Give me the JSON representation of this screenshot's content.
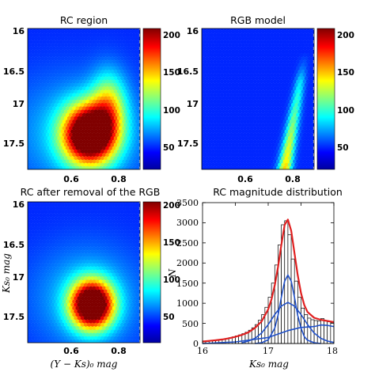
{
  "chart_data": [
    {
      "type": "heatmap",
      "title": "RC region",
      "x_ticks": [
        "0.6",
        "0.8"
      ],
      "y_ticks": [
        "16",
        "16.5",
        "17",
        "17.5"
      ],
      "xlim": [
        0.45,
        0.92
      ],
      "ylim": [
        16.0,
        17.75
      ],
      "colorbar": {
        "ticks": [
          "50",
          "100",
          "150",
          "200"
        ],
        "range": [
          10,
          210
        ]
      },
      "blobs": [
        {
          "x": 0.71,
          "y": 17.32,
          "sx": 0.075,
          "sy": 0.25,
          "peak": 260
        },
        {
          "x": 0.79,
          "y": 16.95,
          "sx": 0.05,
          "sy": 0.28,
          "peak": 85
        },
        {
          "x": 0.66,
          "y": 17.3,
          "sx": 0.2,
          "sy": 0.5,
          "peak": 38
        }
      ]
    },
    {
      "type": "heatmap",
      "title": "RGB model",
      "x_ticks": [
        "0.6",
        "0.8"
      ],
      "y_ticks": [
        "16",
        "16.5",
        "17",
        "17.5"
      ],
      "xlim": [
        0.45,
        0.92
      ],
      "ylim": [
        16.0,
        17.75
      ],
      "colorbar": {
        "ticks": [
          "50",
          "100",
          "150",
          "200"
        ],
        "range": [
          10,
          210
        ]
      },
      "ridge": {
        "x_top": 0.875,
        "y_top": 16.45,
        "x_bottom": 0.8,
        "y_bottom": 17.72,
        "peak": 120
      }
    },
    {
      "type": "heatmap",
      "title": "RC after removal of the RGB",
      "xlabel": "(Y − Ks)₀ mag",
      "ylabel": "Ks₀ mag",
      "x_ticks": [
        "0.6",
        "0.8"
      ],
      "y_ticks": [
        "16",
        "16.5",
        "17",
        "17.5"
      ],
      "xlim": [
        0.45,
        0.92
      ],
      "ylim": [
        16.0,
        17.75
      ],
      "colorbar": {
        "ticks": [
          "50",
          "100",
          "150",
          "200"
        ],
        "range": [
          10,
          210
        ]
      },
      "blobs": [
        {
          "x": 0.72,
          "y": 17.28,
          "sx": 0.06,
          "sy": 0.2,
          "peak": 260
        },
        {
          "x": 0.7,
          "y": 17.2,
          "sx": 0.16,
          "sy": 0.45,
          "peak": 40
        }
      ]
    },
    {
      "type": "bar",
      "title": "RC magnitude distribution",
      "xlabel": "Ks₀ mag",
      "ylabel": "N",
      "xlim": [
        16,
        18
      ],
      "ylim": [
        0,
        3500
      ],
      "x_ticks": [
        "16",
        "17",
        "18"
      ],
      "y_ticks": [
        "0",
        "500",
        "1000",
        "1500",
        "2000",
        "2500",
        "3000",
        "3500"
      ],
      "bins": {
        "x": [
          16.025,
          16.075,
          16.125,
          16.175,
          16.225,
          16.275,
          16.325,
          16.375,
          16.425,
          16.475,
          16.525,
          16.575,
          16.625,
          16.675,
          16.725,
          16.775,
          16.825,
          16.875,
          16.925,
          16.975,
          17.025,
          17.075,
          17.125,
          17.175,
          17.225,
          17.275,
          17.325,
          17.375,
          17.425,
          17.475,
          17.525,
          17.575,
          17.625,
          17.675,
          17.725,
          17.775,
          17.825,
          17.875,
          17.925,
          17.975
        ],
        "values": [
          40,
          50,
          60,
          70,
          80,
          95,
          110,
          125,
          145,
          165,
          190,
          215,
          245,
          280,
          330,
          390,
          470,
          580,
          720,
          900,
          1150,
          1500,
          1950,
          2450,
          2950,
          3050,
          2700,
          2100,
          1550,
          1150,
          880,
          720,
          630,
          590,
          570,
          560,
          620,
          560,
          540,
          520
        ]
      },
      "series": [
        {
          "color": "#e02020",
          "x": [
            16.0,
            16.1,
            16.2,
            16.3,
            16.4,
            16.5,
            16.6,
            16.7,
            16.8,
            16.9,
            17.0,
            17.05,
            17.1,
            17.15,
            17.2,
            17.25,
            17.3,
            17.35,
            17.4,
            17.45,
            17.5,
            17.55,
            17.6,
            17.7,
            17.8,
            17.9,
            18.0
          ],
          "values": [
            50,
            65,
            80,
            100,
            130,
            165,
            215,
            280,
            390,
            550,
            850,
            1100,
            1450,
            1900,
            2450,
            2950,
            3080,
            2800,
            2250,
            1700,
            1250,
            950,
            780,
            640,
            590,
            560,
            530
          ]
        },
        {
          "color": "#2050c8",
          "x": [
            16.8,
            16.9,
            17.0,
            17.1,
            17.15,
            17.2,
            17.25,
            17.3,
            17.35,
            17.4,
            17.45,
            17.5,
            17.55,
            17.6,
            17.7,
            17.8
          ],
          "values": [
            0,
            20,
            90,
            380,
            700,
            1150,
            1550,
            1700,
            1550,
            1150,
            700,
            380,
            170,
            80,
            20,
            0
          ]
        },
        {
          "color": "#2050c8",
          "x": [
            16.6,
            16.7,
            16.8,
            16.9,
            17.0,
            17.1,
            17.2,
            17.3,
            17.4,
            17.5,
            17.6,
            17.7,
            17.8,
            17.9,
            18.0
          ],
          "values": [
            20,
            60,
            130,
            260,
            470,
            720,
            930,
            1020,
            930,
            720,
            470,
            260,
            130,
            60,
            25
          ]
        },
        {
          "color": "#2050c8",
          "x": [
            16.0,
            16.5,
            17.0,
            17.3,
            17.5,
            17.7,
            17.8,
            17.9,
            18.0
          ],
          "values": [
            0,
            40,
            150,
            320,
            400,
            420,
            460,
            450,
            420
          ]
        }
      ]
    }
  ]
}
